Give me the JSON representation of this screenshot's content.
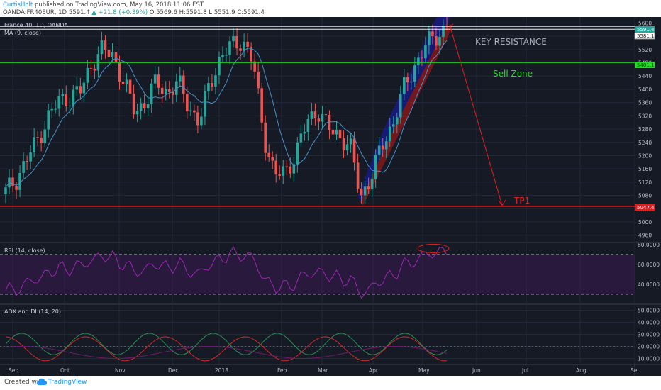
{
  "header": {
    "author": "CurtisHolt",
    "published_text": "published on TradingView.com, May 16, 2018 11:06 EST",
    "symbol": "OANDA:FR40EUR, 1D",
    "open": "5591.4",
    "change": "+21.8 (+0.39%)",
    "ohlc": "O:5569.6 H:5591.8 L:5551.9 C:5591.4"
  },
  "panes": {
    "main_title": "France 40, 1D, OANDA",
    "ma_label": "MA (9, close)",
    "rsi_label": "RSI (14, close)",
    "adx_label": "ADX and DI (14, 20)"
  },
  "annotations": {
    "key_resistance": "KEY RESISTANCE",
    "sell_zone": "Sell Zone",
    "tp1": "TP1"
  },
  "price_tags": {
    "top": "5591.4",
    "resistance": "5581.1",
    "sell": "5481.1",
    "tp1": "5047.4"
  },
  "footer": {
    "created_with": "Created with",
    "brand": "TradingView"
  },
  "colors": {
    "background": "#161a25",
    "up": "#26a69a",
    "down": "#ef5350",
    "sell_line": "#21e021",
    "tp_line": "#e02020",
    "rsi_line": "#9c27b0",
    "channel_blue": "#1a1ab8",
    "channel_red": "#c01818"
  },
  "chart_data": [
    {
      "type": "candlestick",
      "title": "France 40, 1D, OANDA",
      "x_ticks": [
        "Sep",
        "Oct",
        "Nov",
        "Dec",
        "2018",
        "Feb",
        "Mar",
        "Apr",
        "May",
        "Jun",
        "Jul",
        "Aug",
        "Se"
      ],
      "y_ticks": [
        5600,
        5560,
        5520,
        5480,
        5440,
        5400,
        5360,
        5320,
        5280,
        5240,
        5200,
        5160,
        5120,
        5080,
        5040,
        5000,
        4960
      ],
      "ylim": [
        4938,
        5618
      ],
      "horizontal_lines": [
        {
          "label": "KEY RESISTANCE",
          "value": 5581.1
        },
        {
          "label": "Sell Zone",
          "value": 5481.1
        },
        {
          "label": "TP1",
          "value": 5047.4
        }
      ],
      "close_path": [
        [
          "Sep",
          5090
        ],
        [
          "Sep",
          5130
        ],
        [
          "Sep",
          5190
        ],
        [
          "Sep",
          5250
        ],
        [
          "Oct",
          5320
        ],
        [
          "Oct",
          5365
        ],
        [
          "Oct",
          5380
        ],
        [
          "Oct",
          5395
        ],
        [
          "Nov",
          5480
        ],
        [
          "Nov",
          5520
        ],
        [
          "Nov",
          5500
        ],
        [
          "Nov",
          5420
        ],
        [
          "Nov",
          5330
        ],
        [
          "Dec",
          5365
        ],
        [
          "Dec",
          5420
        ],
        [
          "Dec",
          5390
        ],
        [
          "Dec",
          5420
        ],
        [
          "Dec",
          5350
        ],
        [
          "2018",
          5300
        ],
        [
          "2018",
          5420
        ],
        [
          "2018",
          5500
        ],
        [
          "2018",
          5530
        ],
        [
          "2018",
          5550
        ],
        [
          "2018",
          5480
        ],
        [
          "Feb",
          5260
        ],
        [
          "Feb",
          5140
        ],
        [
          "Feb",
          5150
        ],
        [
          "Feb",
          5210
        ],
        [
          "Mar",
          5300
        ],
        [
          "Mar",
          5340
        ],
        [
          "Mar",
          5280
        ],
        [
          "Mar",
          5260
        ],
        [
          "Mar",
          5230
        ],
        [
          "Apr",
          5075
        ],
        [
          "Apr",
          5140
        ],
        [
          "Apr",
          5230
        ],
        [
          "Apr",
          5300
        ],
        [
          "Apr",
          5400
        ],
        [
          "May",
          5470
        ],
        [
          "May",
          5530
        ],
        [
          "May",
          5560
        ],
        [
          "May",
          5591.4
        ]
      ]
    },
    {
      "type": "line",
      "title": "RSI (14, close)",
      "y_ticks": [
        80,
        60,
        40
      ],
      "bands": [
        70,
        30
      ],
      "ylim": [
        20,
        82
      ]
    },
    {
      "type": "line",
      "title": "ADX and DI (14, 20)",
      "y_ticks": [
        50,
        40,
        30,
        20,
        10
      ],
      "reference_line": 20,
      "ylim": [
        5,
        55
      ]
    }
  ]
}
